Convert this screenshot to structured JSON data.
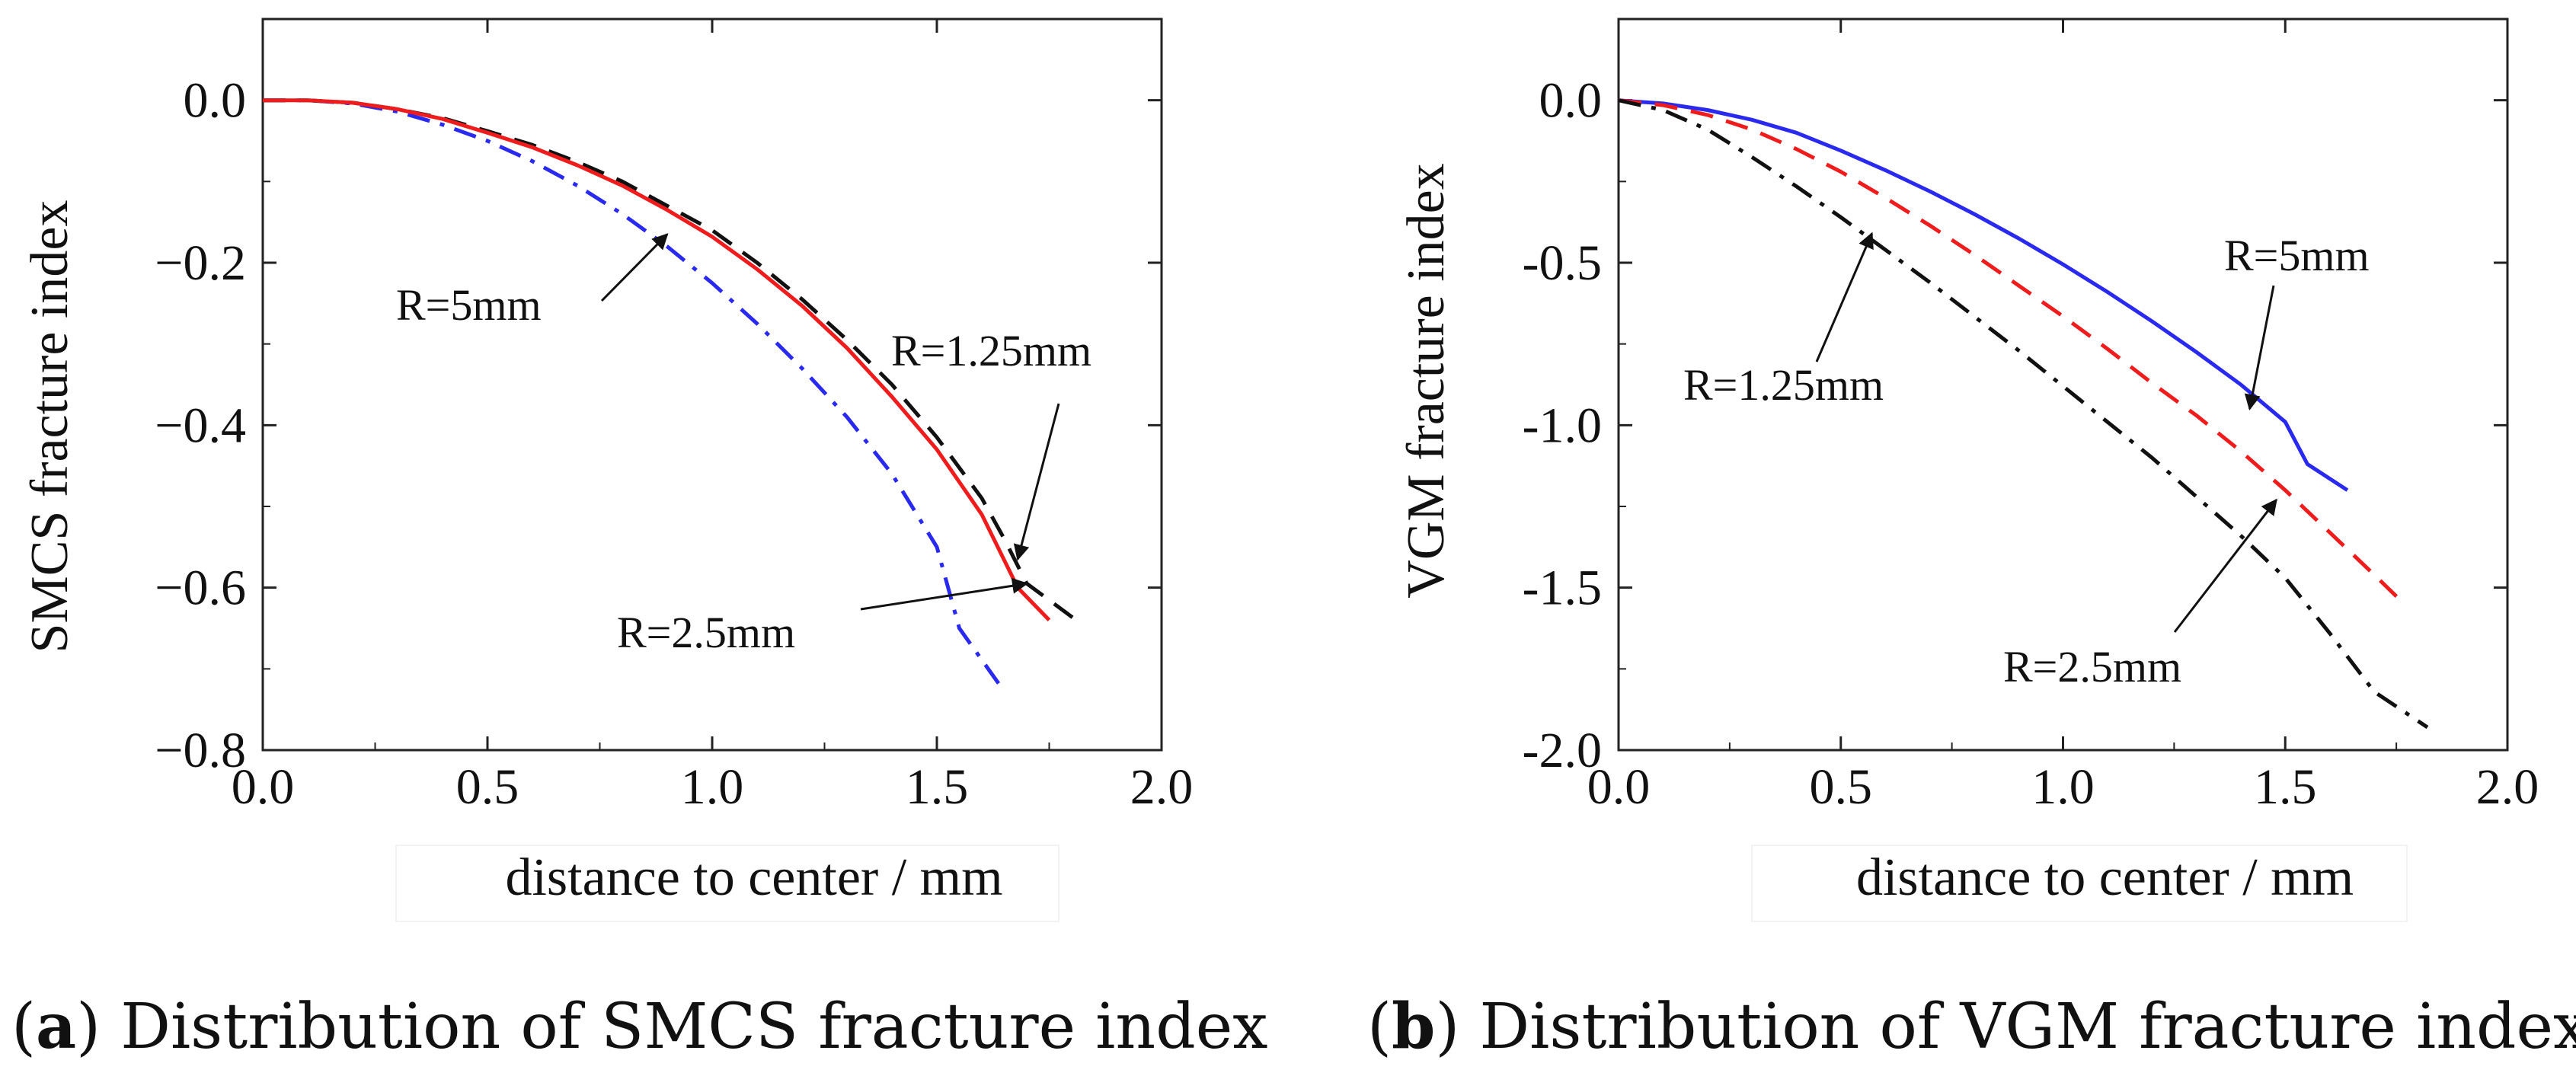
{
  "chart_data": [
    {
      "type": "line",
      "panel_label": "a",
      "caption": "Distribution of SMCS fracture index",
      "xlabel": "distance to center / mm",
      "ylabel": "SMCS fracture index",
      "xlim": [
        0,
        2.0
      ],
      "ylim": [
        -0.8,
        0.1
      ],
      "xticks": [
        0.0,
        0.5,
        1.0,
        1.5,
        2.0
      ],
      "xtick_labels": [
        "0.0",
        "0.5",
        "1.0",
        "1.5",
        "2.0"
      ],
      "yticks": [
        0.0,
        -0.2,
        -0.4,
        -0.6,
        -0.8
      ],
      "ytick_labels": [
        "0.0",
        "−0.2",
        "−0.4",
        "−0.6",
        "−0.8"
      ],
      "series": [
        {
          "name": "R=5mm",
          "color": "#2a2aee",
          "dash": "dashdot",
          "x": [
            0,
            0.1,
            0.2,
            0.3,
            0.4,
            0.5,
            0.6,
            0.7,
            0.8,
            0.9,
            1.0,
            1.1,
            1.2,
            1.3,
            1.4,
            1.5,
            1.55,
            1.64
          ],
          "y": [
            0,
            0,
            -0.004,
            -0.014,
            -0.03,
            -0.05,
            -0.075,
            -0.105,
            -0.14,
            -0.18,
            -0.225,
            -0.275,
            -0.33,
            -0.39,
            -0.46,
            -0.55,
            -0.65,
            -0.72
          ]
        },
        {
          "name": "R=1.25mm",
          "color": "#111111",
          "dash": "dashed",
          "x": [
            0,
            0.1,
            0.2,
            0.3,
            0.4,
            0.5,
            0.6,
            0.7,
            0.8,
            0.9,
            1.0,
            1.1,
            1.2,
            1.3,
            1.4,
            1.5,
            1.6,
            1.65,
            1.7,
            1.81
          ],
          "y": [
            0,
            0,
            -0.003,
            -0.011,
            -0.022,
            -0.038,
            -0.055,
            -0.076,
            -0.1,
            -0.13,
            -0.16,
            -0.2,
            -0.245,
            -0.295,
            -0.35,
            -0.415,
            -0.49,
            -0.54,
            -0.595,
            -0.64
          ]
        },
        {
          "name": "R=2.5mm",
          "color": "#ee1c1c",
          "dash": "solid",
          "x": [
            0,
            0.1,
            0.2,
            0.3,
            0.4,
            0.5,
            0.6,
            0.7,
            0.8,
            0.9,
            1.0,
            1.1,
            1.2,
            1.3,
            1.4,
            1.5,
            1.6,
            1.68,
            1.75
          ],
          "y": [
            0,
            0,
            -0.003,
            -0.011,
            -0.023,
            -0.04,
            -0.058,
            -0.08,
            -0.105,
            -0.135,
            -0.168,
            -0.208,
            -0.253,
            -0.305,
            -0.365,
            -0.43,
            -0.51,
            -0.6,
            -0.64
          ]
        }
      ],
      "annotations": [
        {
          "text": "R=5mm",
          "tip": [
            0.9,
            -0.165
          ]
        },
        {
          "text": "R=1.25mm",
          "tip": [
            1.68,
            -0.565
          ]
        },
        {
          "text": "R=2.5mm",
          "tip": [
            1.7,
            -0.595
          ]
        }
      ]
    },
    {
      "type": "line",
      "panel_label": "b",
      "caption": "Distribution of VGM fracture index",
      "xlabel": "distance to center / mm",
      "ylabel": "VGM fracture index",
      "xlim": [
        0,
        2.0
      ],
      "ylim": [
        -2.0,
        0.25
      ],
      "xticks": [
        0.0,
        0.5,
        1.0,
        1.5,
        2.0
      ],
      "xtick_labels": [
        "0.0",
        "0.5",
        "1.0",
        "1.5",
        "2.0"
      ],
      "yticks": [
        0.0,
        -0.5,
        -1.0,
        -1.5,
        -2.0
      ],
      "ytick_labels": [
        "0.0",
        "-0.5",
        "-1.0",
        "-1.5",
        "-2.0"
      ],
      "series": [
        {
          "name": "R=5mm",
          "color": "#2a2aee",
          "dash": "solid",
          "x": [
            0,
            0.1,
            0.2,
            0.3,
            0.4,
            0.5,
            0.6,
            0.7,
            0.8,
            0.9,
            1.0,
            1.1,
            1.2,
            1.3,
            1.4,
            1.5,
            1.55,
            1.64
          ],
          "y": [
            0,
            -0.01,
            -0.03,
            -0.06,
            -0.1,
            -0.155,
            -0.215,
            -0.28,
            -0.35,
            -0.425,
            -0.505,
            -0.59,
            -0.68,
            -0.775,
            -0.875,
            -0.99,
            -1.12,
            -1.2
          ]
        },
        {
          "name": "R=2.5mm",
          "color": "#ee1c1c",
          "dash": "dashed",
          "x": [
            0,
            0.1,
            0.2,
            0.3,
            0.4,
            0.5,
            0.6,
            0.7,
            0.8,
            0.9,
            1.0,
            1.1,
            1.2,
            1.3,
            1.4,
            1.5,
            1.6,
            1.7,
            1.76
          ],
          "y": [
            0,
            -0.015,
            -0.045,
            -0.09,
            -0.15,
            -0.22,
            -0.3,
            -0.385,
            -0.475,
            -0.57,
            -0.665,
            -0.765,
            -0.87,
            -0.97,
            -1.08,
            -1.2,
            -1.33,
            -1.46,
            -1.54
          ]
        },
        {
          "name": "R=1.25mm",
          "color": "#111111",
          "dash": "dashdot",
          "x": [
            0,
            0.1,
            0.2,
            0.3,
            0.4,
            0.5,
            0.6,
            0.7,
            0.8,
            0.9,
            1.0,
            1.1,
            1.2,
            1.3,
            1.4,
            1.5,
            1.6,
            1.7,
            1.82
          ],
          "y": [
            0,
            -0.03,
            -0.09,
            -0.175,
            -0.265,
            -0.36,
            -0.46,
            -0.56,
            -0.665,
            -0.77,
            -0.88,
            -0.99,
            -1.1,
            -1.22,
            -1.34,
            -1.47,
            -1.64,
            -1.82,
            -1.93
          ]
        }
      ],
      "annotations": [
        {
          "text": "R=5mm",
          "tip": [
            1.42,
            -0.95
          ]
        },
        {
          "text": "R=1.25mm",
          "tip": [
            0.57,
            -0.41
          ]
        },
        {
          "text": "R=2.5mm",
          "tip": [
            1.48,
            -1.23
          ]
        }
      ]
    }
  ]
}
